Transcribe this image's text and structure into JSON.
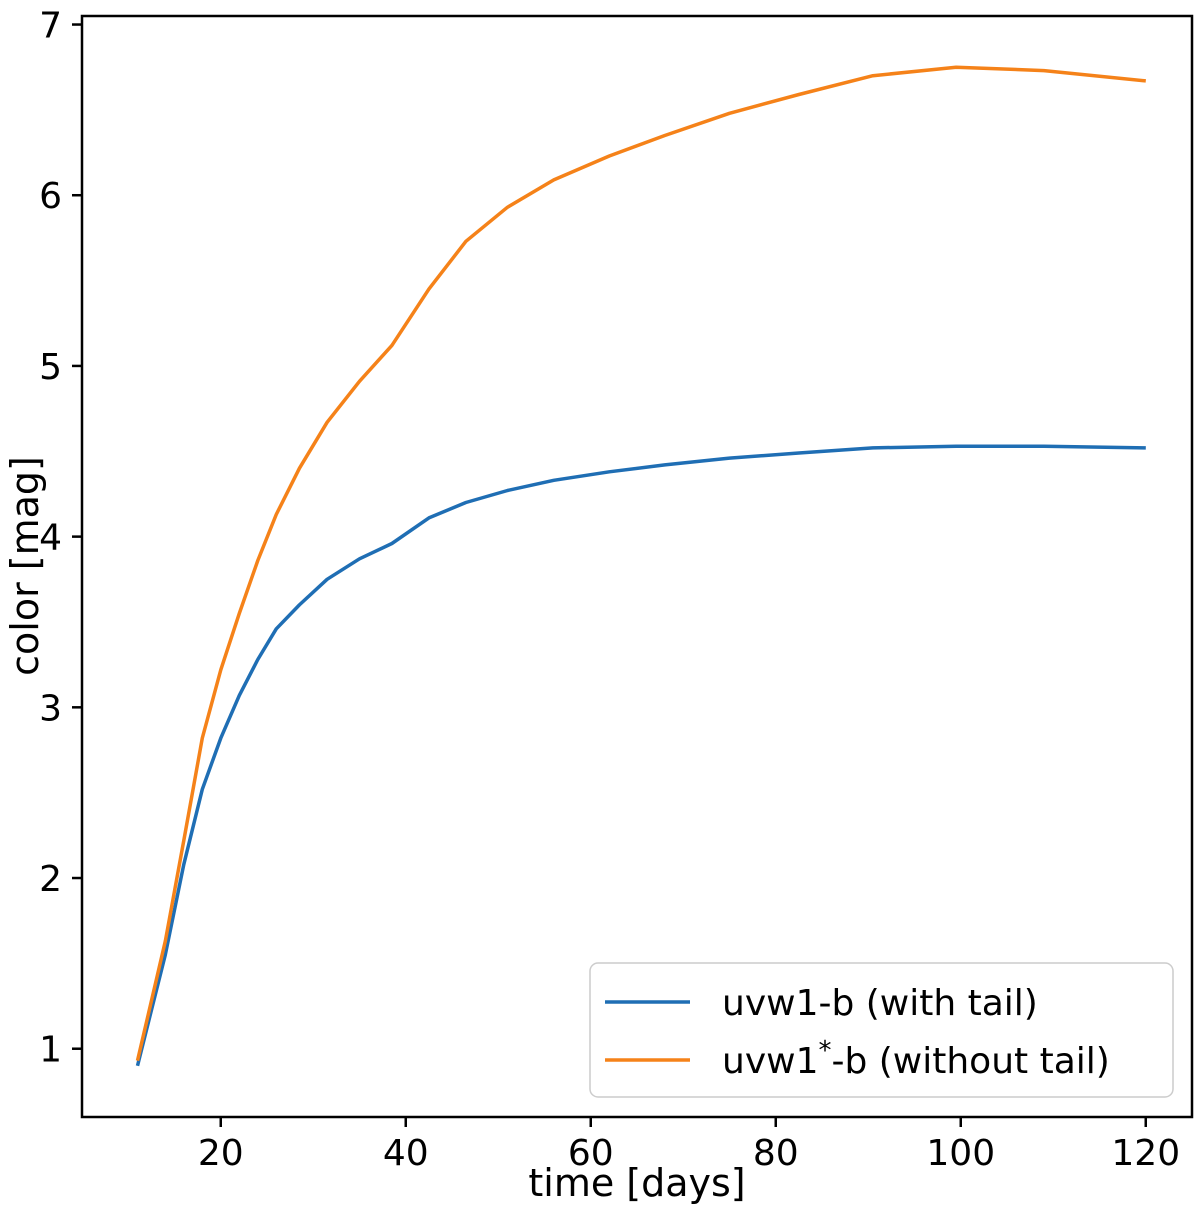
{
  "chart_data": {
    "type": "line",
    "title": "",
    "xlabel": "time [days]",
    "ylabel": "color [mag]",
    "xlim": [
      5,
      125
    ],
    "ylim": [
      0.6,
      7.05
    ],
    "xticks": [
      20,
      40,
      60,
      80,
      100,
      120
    ],
    "yticks": [
      1,
      2,
      3,
      4,
      5,
      6,
      7
    ],
    "grid": false,
    "legend_position": "lower-right",
    "series": [
      {
        "name": "uvw1-b (with tail)",
        "legend_base": "uvw1",
        "legend_sup": "",
        "legend_rest": "-b (with tail)",
        "color": "#1f6eb4",
        "x": [
          11,
          14,
          16,
          18,
          20,
          22,
          24,
          26,
          28.5,
          31.5,
          35,
          38.5,
          42.5,
          46.5,
          51,
          56,
          62,
          68,
          75,
          82.5,
          90.5,
          99.5,
          109,
          120
        ],
        "y": [
          0.9,
          1.55,
          2.08,
          2.52,
          2.82,
          3.07,
          3.28,
          3.46,
          3.6,
          3.75,
          3.87,
          3.96,
          4.11,
          4.2,
          4.27,
          4.33,
          4.38,
          4.42,
          4.46,
          4.49,
          4.52,
          4.53,
          4.53,
          4.52
        ]
      },
      {
        "name": "uvw1*-b (without tail)",
        "legend_base": "uvw1",
        "legend_sup": "*",
        "legend_rest": "-b (without tail)",
        "color": "#f58219",
        "x": [
          11,
          14,
          16,
          18,
          20,
          22,
          24,
          26,
          28.5,
          31.5,
          35,
          38.5,
          42.5,
          46.5,
          51,
          56,
          62,
          68,
          75,
          82.5,
          90.5,
          99.5,
          109,
          120
        ],
        "y": [
          0.93,
          1.63,
          2.22,
          2.82,
          3.22,
          3.55,
          3.86,
          4.13,
          4.4,
          4.67,
          4.91,
          5.12,
          5.45,
          5.73,
          5.93,
          6.09,
          6.23,
          6.35,
          6.48,
          6.59,
          6.7,
          6.75,
          6.73,
          6.67
        ]
      }
    ]
  }
}
